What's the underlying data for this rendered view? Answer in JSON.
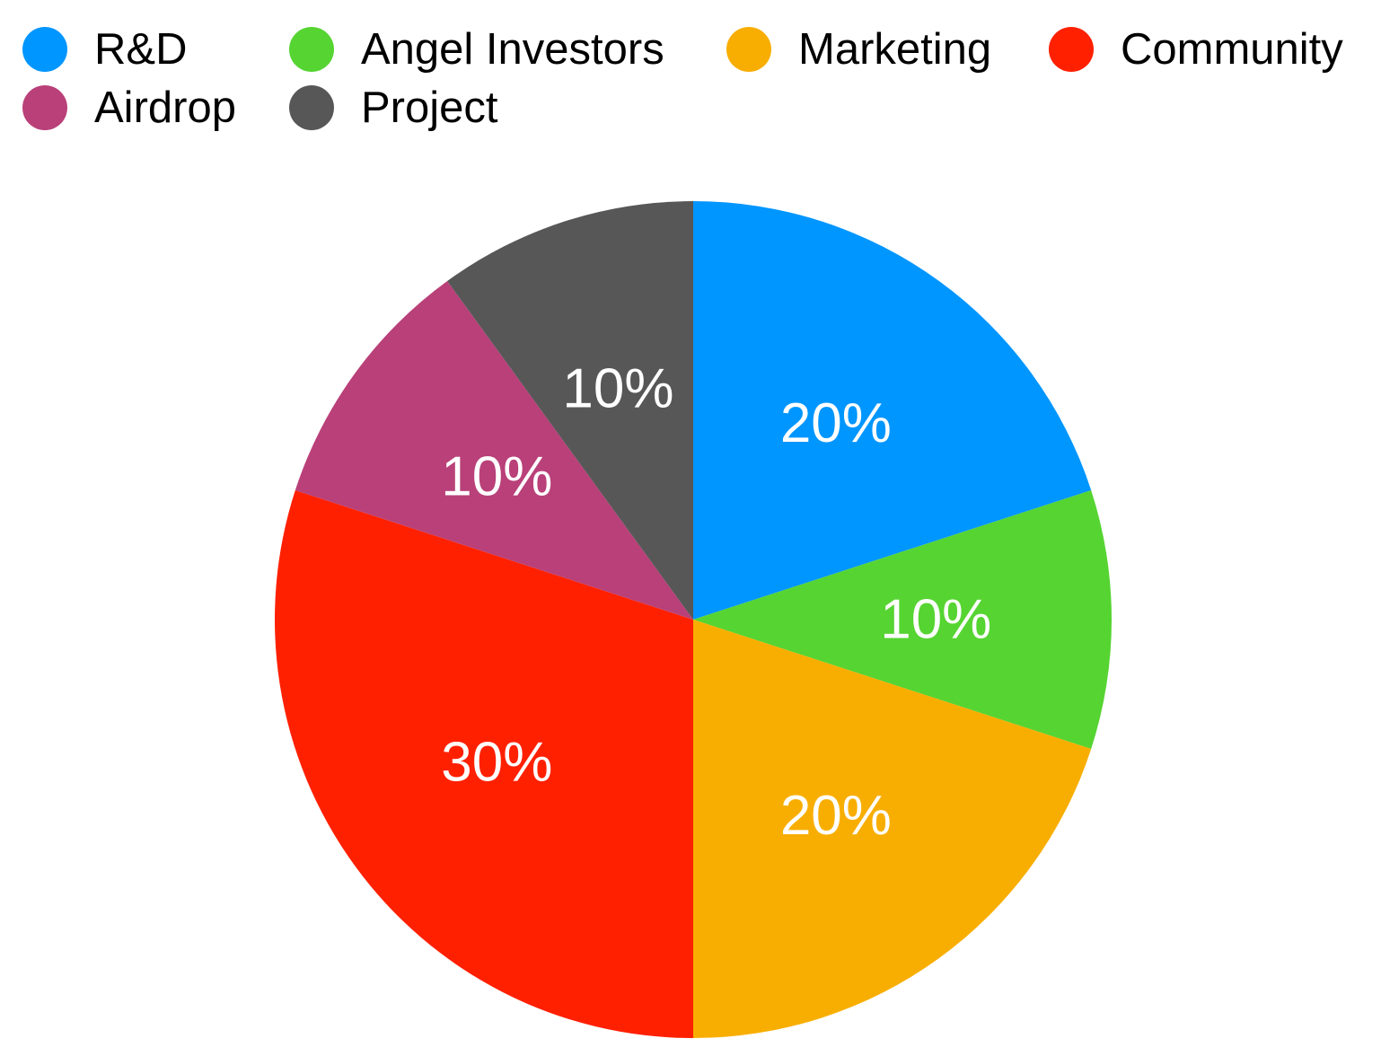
{
  "chart_data": {
    "type": "pie",
    "title": "",
    "unit": "%",
    "slices": [
      {
        "name": "R&D",
        "value": 20,
        "label": "20%",
        "color": "#0096FF"
      },
      {
        "name": "Angel Investors",
        "value": 10,
        "label": "10%",
        "color": "#56D432"
      },
      {
        "name": "Marketing",
        "value": 20,
        "label": "20%",
        "color": "#F8AE00"
      },
      {
        "name": "Community",
        "value": 30,
        "label": "30%",
        "color": "#FF2000"
      },
      {
        "name": "Airdrop",
        "value": 10,
        "label": "10%",
        "color": "#B94079"
      },
      {
        "name": "Project",
        "value": 10,
        "label": "10%",
        "color": "#575757"
      }
    ],
    "legend_position": "top",
    "start_angle": "12 o'clock",
    "direction": "clockwise"
  }
}
